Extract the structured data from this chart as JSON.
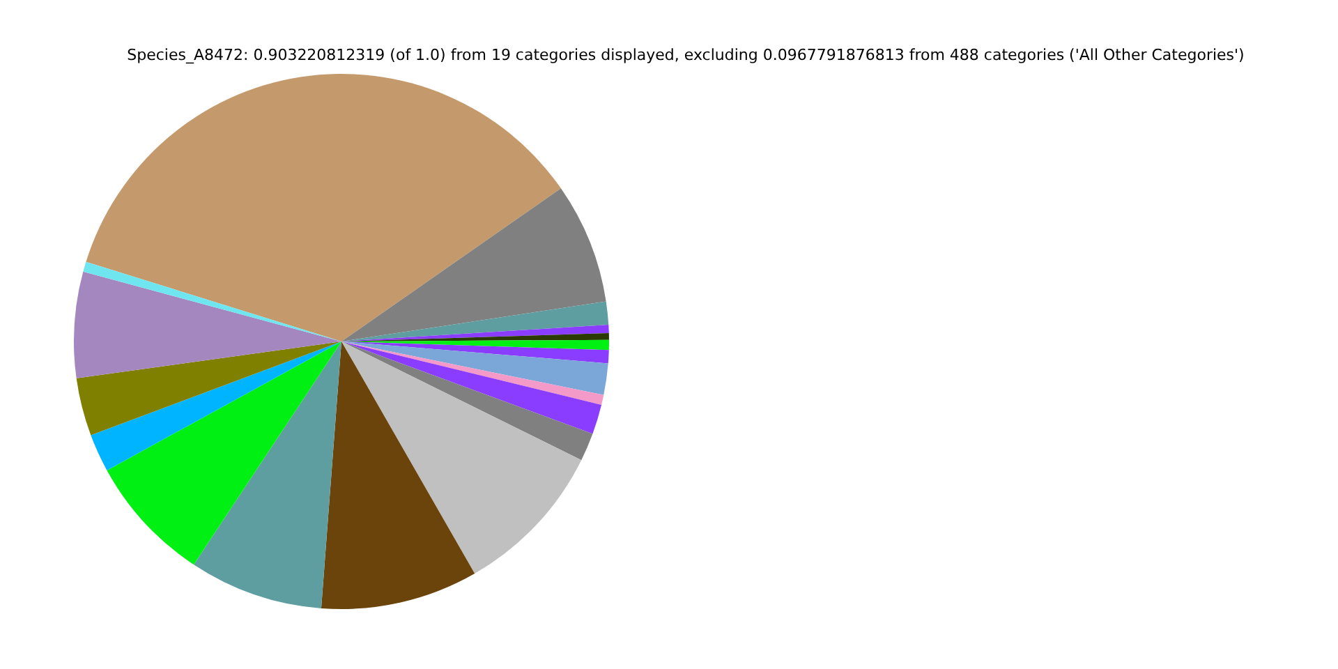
{
  "chart_data": {
    "type": "pie",
    "title": "Species_A8472: 0.903220812319 (of 1.0) from 19 categories displayed, excluding 0.0967791876813 from 488 categories ('All Other Categories')",
    "categories": [
      null,
      null,
      null,
      null,
      null,
      null,
      null,
      null,
      null,
      null,
      null,
      null,
      null,
      null,
      null,
      null,
      null,
      null,
      null
    ],
    "values": [
      35.5,
      7.3,
      1.4,
      0.5,
      0.4,
      0.6,
      0.8,
      1.9,
      0.6,
      1.8,
      1.7,
      9.4,
      9.5,
      8.1,
      7.7,
      2.3,
      3.5,
      6.4,
      0.6
    ],
    "colors": [
      "#c49a6c",
      "#808080",
      "#5f9ea0",
      "#8b3dff",
      "#2b3a00",
      "#00f014",
      "#8b3dff",
      "#7ba7d8",
      "#f39ac8",
      "#8b3dff",
      "#808080",
      "#c0c0c0",
      "#6b440c",
      "#5f9ea0",
      "#00f014",
      "#00b4ff",
      "#808000",
      "#a487be",
      "#6fe5f0"
    ]
  }
}
